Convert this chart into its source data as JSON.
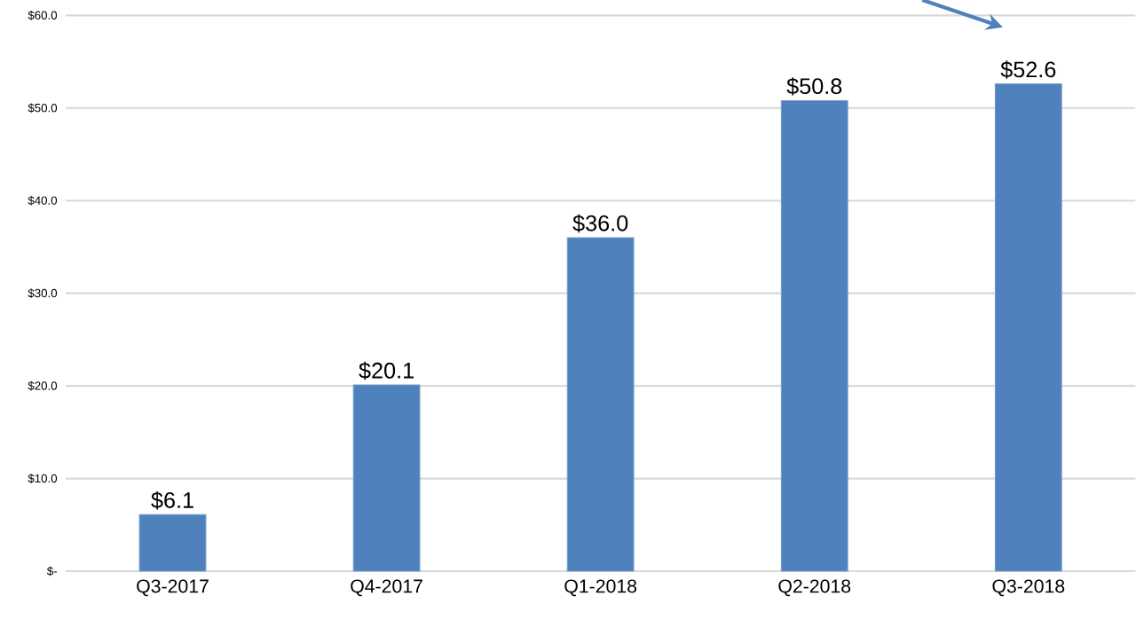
{
  "chart_data": {
    "type": "bar",
    "categories": [
      "Q3-2017",
      "Q4-2017",
      "Q1-2018",
      "Q2-2018",
      "Q3-2018"
    ],
    "values": [
      6.1,
      20.1,
      36.0,
      50.8,
      52.6
    ],
    "value_labels": [
      "$6.1",
      "$20.1",
      "$36.0",
      "$50.8",
      "$52.6"
    ],
    "color": "#4f81bd",
    "ylim": [
      0,
      60
    ],
    "yticks": [
      {
        "value": 0,
        "label": "$-"
      },
      {
        "value": 10,
        "label": "$10.0"
      },
      {
        "value": 20,
        "label": "$20.0"
      },
      {
        "value": 30,
        "label": "$30.0"
      },
      {
        "value": 40,
        "label": "$40.0"
      },
      {
        "value": 50,
        "label": "$50.0"
      },
      {
        "value": 60,
        "label": "$60.0"
      }
    ],
    "grid": "y"
  }
}
